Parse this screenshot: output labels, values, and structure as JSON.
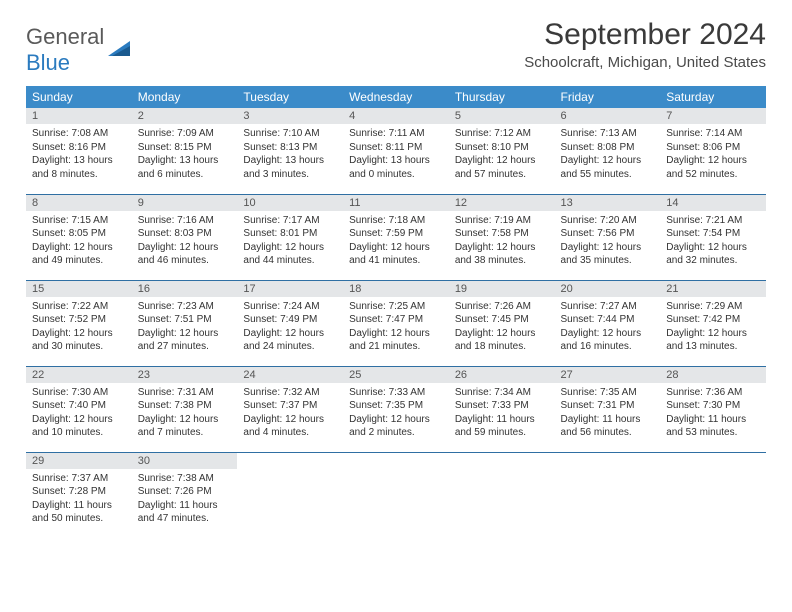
{
  "logo": {
    "word1": "General",
    "word2": "Blue"
  },
  "title": "September 2024",
  "location": "Schoolcraft, Michigan, United States",
  "colors": {
    "header_bg": "#3b8bc9",
    "header_text": "#ffffff",
    "daynum_bg": "#e4e6e8",
    "row_border": "#2f6fa3",
    "logo_gray": "#5a5a5a",
    "logo_blue": "#2b7bbf"
  },
  "day_headers": [
    "Sunday",
    "Monday",
    "Tuesday",
    "Wednesday",
    "Thursday",
    "Friday",
    "Saturday"
  ],
  "weeks": [
    [
      {
        "n": "1",
        "sr": "7:08 AM",
        "ss": "8:16 PM",
        "dl": "13 hours and 8 minutes."
      },
      {
        "n": "2",
        "sr": "7:09 AM",
        "ss": "8:15 PM",
        "dl": "13 hours and 6 minutes."
      },
      {
        "n": "3",
        "sr": "7:10 AM",
        "ss": "8:13 PM",
        "dl": "13 hours and 3 minutes."
      },
      {
        "n": "4",
        "sr": "7:11 AM",
        "ss": "8:11 PM",
        "dl": "13 hours and 0 minutes."
      },
      {
        "n": "5",
        "sr": "7:12 AM",
        "ss": "8:10 PM",
        "dl": "12 hours and 57 minutes."
      },
      {
        "n": "6",
        "sr": "7:13 AM",
        "ss": "8:08 PM",
        "dl": "12 hours and 55 minutes."
      },
      {
        "n": "7",
        "sr": "7:14 AM",
        "ss": "8:06 PM",
        "dl": "12 hours and 52 minutes."
      }
    ],
    [
      {
        "n": "8",
        "sr": "7:15 AM",
        "ss": "8:05 PM",
        "dl": "12 hours and 49 minutes."
      },
      {
        "n": "9",
        "sr": "7:16 AM",
        "ss": "8:03 PM",
        "dl": "12 hours and 46 minutes."
      },
      {
        "n": "10",
        "sr": "7:17 AM",
        "ss": "8:01 PM",
        "dl": "12 hours and 44 minutes."
      },
      {
        "n": "11",
        "sr": "7:18 AM",
        "ss": "7:59 PM",
        "dl": "12 hours and 41 minutes."
      },
      {
        "n": "12",
        "sr": "7:19 AM",
        "ss": "7:58 PM",
        "dl": "12 hours and 38 minutes."
      },
      {
        "n": "13",
        "sr": "7:20 AM",
        "ss": "7:56 PM",
        "dl": "12 hours and 35 minutes."
      },
      {
        "n": "14",
        "sr": "7:21 AM",
        "ss": "7:54 PM",
        "dl": "12 hours and 32 minutes."
      }
    ],
    [
      {
        "n": "15",
        "sr": "7:22 AM",
        "ss": "7:52 PM",
        "dl": "12 hours and 30 minutes."
      },
      {
        "n": "16",
        "sr": "7:23 AM",
        "ss": "7:51 PM",
        "dl": "12 hours and 27 minutes."
      },
      {
        "n": "17",
        "sr": "7:24 AM",
        "ss": "7:49 PM",
        "dl": "12 hours and 24 minutes."
      },
      {
        "n": "18",
        "sr": "7:25 AM",
        "ss": "7:47 PM",
        "dl": "12 hours and 21 minutes."
      },
      {
        "n": "19",
        "sr": "7:26 AM",
        "ss": "7:45 PM",
        "dl": "12 hours and 18 minutes."
      },
      {
        "n": "20",
        "sr": "7:27 AM",
        "ss": "7:44 PM",
        "dl": "12 hours and 16 minutes."
      },
      {
        "n": "21",
        "sr": "7:29 AM",
        "ss": "7:42 PM",
        "dl": "12 hours and 13 minutes."
      }
    ],
    [
      {
        "n": "22",
        "sr": "7:30 AM",
        "ss": "7:40 PM",
        "dl": "12 hours and 10 minutes."
      },
      {
        "n": "23",
        "sr": "7:31 AM",
        "ss": "7:38 PM",
        "dl": "12 hours and 7 minutes."
      },
      {
        "n": "24",
        "sr": "7:32 AM",
        "ss": "7:37 PM",
        "dl": "12 hours and 4 minutes."
      },
      {
        "n": "25",
        "sr": "7:33 AM",
        "ss": "7:35 PM",
        "dl": "12 hours and 2 minutes."
      },
      {
        "n": "26",
        "sr": "7:34 AM",
        "ss": "7:33 PM",
        "dl": "11 hours and 59 minutes."
      },
      {
        "n": "27",
        "sr": "7:35 AM",
        "ss": "7:31 PM",
        "dl": "11 hours and 56 minutes."
      },
      {
        "n": "28",
        "sr": "7:36 AM",
        "ss": "7:30 PM",
        "dl": "11 hours and 53 minutes."
      }
    ],
    [
      {
        "n": "29",
        "sr": "7:37 AM",
        "ss": "7:28 PM",
        "dl": "11 hours and 50 minutes."
      },
      {
        "n": "30",
        "sr": "7:38 AM",
        "ss": "7:26 PM",
        "dl": "11 hours and 47 minutes."
      },
      null,
      null,
      null,
      null,
      null
    ]
  ],
  "labels": {
    "sunrise": "Sunrise:",
    "sunset": "Sunset:",
    "daylight": "Daylight:"
  }
}
